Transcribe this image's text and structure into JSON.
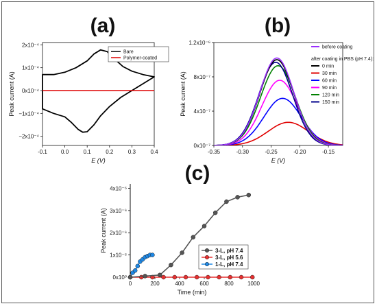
{
  "chart_data": [
    {
      "panel": "(a)",
      "type": "line",
      "xlabel": "E (V)",
      "ylabel": "Peak current (A)",
      "xlim": [
        -0.1,
        0.4
      ],
      "ylim": [
        -0.00024,
        0.00021
      ],
      "xticks": [
        -0.1,
        0.0,
        0.1,
        0.2,
        0.3,
        0.4
      ],
      "xtick_labels": [
        "-0.1",
        "0.0",
        "0.1",
        "0.2",
        "0.3",
        "0.4"
      ],
      "yticks": [
        0.0002,
        0.0001,
        0,
        -0.0001,
        -0.0002
      ],
      "ytick_labels": [
        "2x10⁻⁴",
        "1x10⁻⁴",
        "0x10⁻⁴",
        "−1x10⁻⁴",
        "−2x10⁻⁴"
      ],
      "legend_position": "top-right",
      "series": [
        {
          "name": "Bare",
          "color": "#000000",
          "x": [
            -0.1,
            -0.05,
            0.0,
            0.05,
            0.1,
            0.13,
            0.16,
            0.19,
            0.22,
            0.26,
            0.3,
            0.35,
            0.4,
            0.35,
            0.3,
            0.25,
            0.2,
            0.16,
            0.13,
            0.1,
            0.08,
            0.06,
            0.03,
            0.0,
            -0.05,
            -0.1
          ],
          "y": [
            7e-05,
            7e-05,
            8e-05,
            0.0001,
            0.00013,
            0.00016,
            0.000178,
            0.00017,
            0.00014,
            0.000105,
            8.5e-05,
            7e-05,
            6e-05,
            3e-05,
            0.0,
            -3e-05,
            -7e-05,
            -0.00011,
            -0.00015,
            -0.00018,
            -0.000182,
            -0.00017,
            -0.00014,
            -0.000115,
            -0.0001,
            -8e-05
          ]
        },
        {
          "name": "Polymer-coated",
          "color": "#dd0000",
          "x": [
            -0.1,
            0.4
          ],
          "y": [
            0.0,
            0.0
          ]
        }
      ]
    },
    {
      "panel": "(b)",
      "type": "line",
      "xlabel": "E (V)",
      "ylabel": "Peak current (A)",
      "xlim": [
        -0.35,
        -0.125
      ],
      "ylim": [
        0,
        1.2e-06
      ],
      "xticks": [
        -0.35,
        -0.3,
        -0.25,
        -0.2,
        -0.15
      ],
      "xtick_labels": [
        "-0.35",
        "-0.30",
        "-0.25",
        "-0.20",
        "-0.15"
      ],
      "yticks": [
        0,
        4e-07,
        8e-07,
        1.2e-06
      ],
      "ytick_labels": [
        "0x10⁻⁷",
        "4x10⁻⁷",
        "8x10⁻⁷",
        "1.2x10⁻⁶"
      ],
      "legend_position": "right",
      "legend_header": "after coating in PBS (pH 7.4):",
      "series": [
        {
          "name": "before coating",
          "color": "#9b30ff",
          "peak_x": -0.24,
          "peak_y": 1.02e-06,
          "width": 0.042
        },
        {
          "name": "0 min",
          "color": "#000000",
          "peak_x": -0.24,
          "peak_y": 1e-06,
          "width": 0.042
        },
        {
          "name": "30 min",
          "color": "#e00000",
          "peak_x": -0.22,
          "peak_y": 2.7e-07,
          "width": 0.05
        },
        {
          "name": "60 min",
          "color": "#0000ff",
          "peak_x": -0.23,
          "peak_y": 5.5e-07,
          "width": 0.046
        },
        {
          "name": "90 min",
          "color": "#ff00ff",
          "peak_x": -0.235,
          "peak_y": 7.6e-07,
          "width": 0.044
        },
        {
          "name": "120 min",
          "color": "#008000",
          "peak_x": -0.238,
          "peak_y": 9.3e-07,
          "width": 0.043
        },
        {
          "name": "150 min",
          "color": "#00008b",
          "peak_x": -0.242,
          "peak_y": 9.7e-07,
          "width": 0.042
        }
      ]
    },
    {
      "panel": "(c)",
      "type": "line",
      "xlabel": "Time (min)",
      "ylabel": "Peak current (A)",
      "xlim": [
        0,
        1000
      ],
      "ylim": [
        0,
        4.2e-06
      ],
      "xticks": [
        0,
        200,
        400,
        600,
        800,
        1000
      ],
      "xtick_labels": [
        "0",
        "200",
        "400",
        "600",
        "800",
        "1000"
      ],
      "yticks": [
        0,
        1e-06,
        2e-06,
        3e-06,
        4e-06
      ],
      "ytick_labels": [
        "0x10⁰",
        "1x10⁻⁶",
        "2x10⁻⁶",
        "3x10⁻⁶",
        "4x10⁻⁶"
      ],
      "legend_position": "bottom-right",
      "series": [
        {
          "name": "3-L, pH 7.4",
          "color": "#555555",
          "x": [
            0,
            120,
            240,
            330,
            420,
            510,
            600,
            690,
            780,
            870,
            960
          ],
          "y": [
            0,
            5e-08,
            1e-07,
            5.5e-07,
            1.1e-06,
            1.8e-06,
            2.3e-06,
            2.9e-06,
            3.4e-06,
            3.6e-06,
            3.7e-06
          ]
        },
        {
          "name": "3-L, pH 5.6",
          "color": "#e83030",
          "x": [
            0,
            90,
            180,
            270,
            360,
            450,
            540,
            630,
            720,
            810,
            900,
            990
          ],
          "y": [
            0,
            0,
            0,
            0,
            0,
            0,
            0,
            0,
            0,
            0,
            0,
            0
          ]
        },
        {
          "name": "1-L, pH 7.4",
          "color": "#1e88e5",
          "x": [
            0,
            20,
            40,
            60,
            80,
            100,
            120,
            140,
            160,
            180
          ],
          "y": [
            0,
            2e-07,
            3e-07,
            5e-07,
            7e-07,
            8e-07,
            9e-07,
            9.5e-07,
            1e-06,
            1e-06
          ]
        }
      ]
    }
  ]
}
